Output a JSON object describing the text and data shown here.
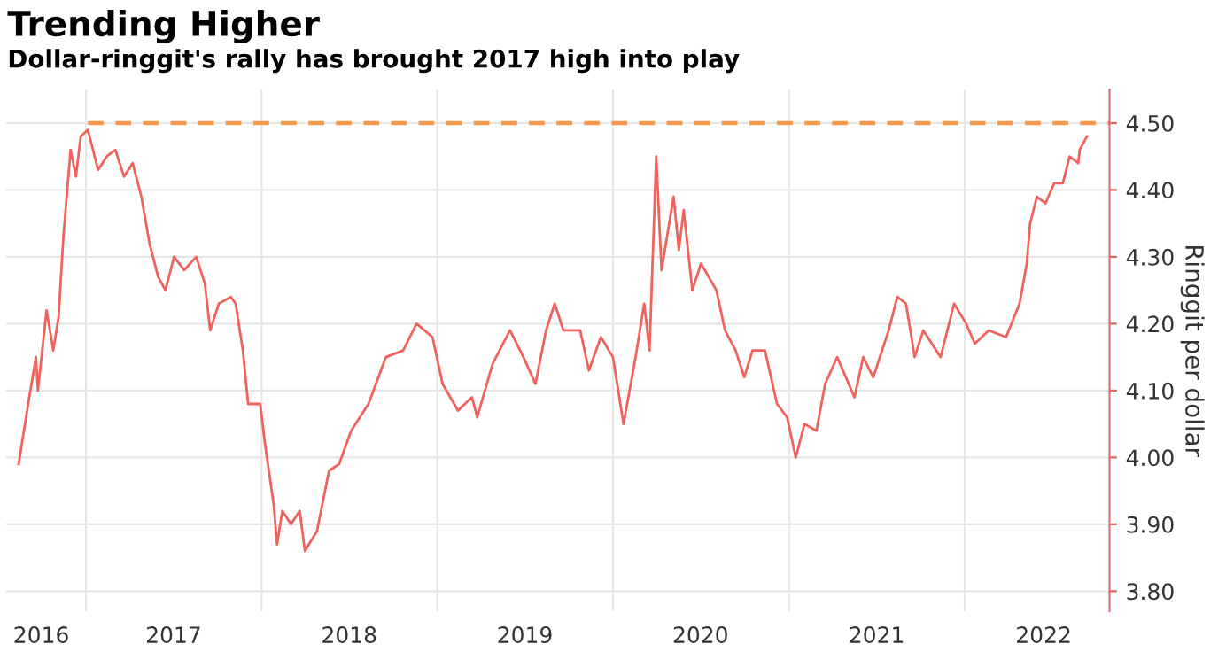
{
  "chart_data": {
    "type": "line",
    "title": "Trending Higher",
    "subtitle": "Dollar-ringgit's rally has brought 2017 high into play",
    "ylabel": "Ringgit per dollar",
    "xlim": [
      "2016-07-19",
      "2022-10-29"
    ],
    "ylim": [
      3.77,
      4.55
    ],
    "yticks": [
      {
        "value": 3.8,
        "label": "3.80"
      },
      {
        "value": 3.9,
        "label": "3.90"
      },
      {
        "value": 4.0,
        "label": "4.00"
      },
      {
        "value": 4.1,
        "label": "4.10"
      },
      {
        "value": 4.2,
        "label": "4.20"
      },
      {
        "value": 4.3,
        "label": "4.30"
      },
      {
        "value": 4.4,
        "label": "4.40"
      },
      {
        "value": 4.5,
        "label": "4.50"
      }
    ],
    "xticks": [
      {
        "value": "2017-01-01",
        "label": null
      },
      {
        "value": "2018-01-01",
        "label": null
      },
      {
        "value": "2019-01-01",
        "label": null
      },
      {
        "value": "2020-01-01",
        "label": null
      },
      {
        "value": "2021-01-01",
        "label": null
      },
      {
        "value": "2022-01-01",
        "label": null
      },
      {
        "value": "2016-09-30",
        "label": "2016"
      },
      {
        "value": "2017-07-02",
        "label": "2017"
      },
      {
        "value": "2018-07-02",
        "label": "2018"
      },
      {
        "value": "2019-07-02",
        "label": "2019"
      },
      {
        "value": "2020-07-01",
        "label": "2020"
      },
      {
        "value": "2021-07-02",
        "label": "2021"
      },
      {
        "value": "2022-06-14",
        "label": "2022"
      }
    ],
    "grid": true,
    "legend": false,
    "marker": "none",
    "series": [
      {
        "color": "#f0625c",
        "line_style": "solid",
        "x": [
          "2016-08-14",
          "2016-08-25",
          "2016-09-05",
          "2016-09-19",
          "2016-09-23",
          "2016-10-11",
          "2016-10-25",
          "2016-11-05",
          "2016-11-15",
          "2016-11-30",
          "2016-12-11",
          "2016-12-21",
          "2017-01-05",
          "2017-01-26",
          "2017-02-13",
          "2017-03-03",
          "2017-03-21",
          "2017-04-08",
          "2017-04-26",
          "2017-05-13",
          "2017-05-31",
          "2017-06-15",
          "2017-07-03",
          "2017-07-24",
          "2017-08-18",
          "2017-09-05",
          "2017-09-16",
          "2017-10-04",
          "2017-10-29",
          "2017-11-08",
          "2017-11-23",
          "2017-12-04",
          "2017-12-29",
          "2018-01-08",
          "2018-01-26",
          "2018-02-02",
          "2018-02-13",
          "2018-03-03",
          "2018-03-21",
          "2018-04-01",
          "2018-04-26",
          "2018-05-21",
          "2018-06-11",
          "2018-07-06",
          "2018-08-11",
          "2018-09-16",
          "2018-10-22",
          "2018-11-19",
          "2018-12-22",
          "2019-01-12",
          "2019-02-13",
          "2019-03-14",
          "2019-03-25",
          "2019-04-26",
          "2019-06-01",
          "2019-06-29",
          "2019-07-24",
          "2019-08-15",
          "2019-09-02",
          "2019-09-20",
          "2019-10-25",
          "2019-11-12",
          "2019-12-07",
          "2020-01-01",
          "2020-01-23",
          "2020-02-17",
          "2020-03-06",
          "2020-03-17",
          "2020-03-31",
          "2020-04-11",
          "2020-05-06",
          "2020-05-17",
          "2020-05-27",
          "2020-06-14",
          "2020-07-02",
          "2020-08-03",
          "2020-08-21",
          "2020-09-12",
          "2020-09-30",
          "2020-10-17",
          "2020-11-12",
          "2020-12-07",
          "2020-12-28",
          "2021-01-15",
          "2021-02-02",
          "2021-02-27",
          "2021-03-17",
          "2021-04-11",
          "2021-05-17",
          "2021-06-04",
          "2021-06-25",
          "2021-07-27",
          "2021-08-14",
          "2021-09-01",
          "2021-09-19",
          "2021-10-07",
          "2021-11-12",
          "2021-12-10",
          "2022-01-04",
          "2022-01-22",
          "2022-02-20",
          "2022-03-28",
          "2022-04-25",
          "2022-05-10",
          "2022-05-17",
          "2022-05-31",
          "2022-06-18",
          "2022-07-06",
          "2022-07-24",
          "2022-08-07",
          "2022-08-25",
          "2022-08-28",
          "2022-09-12"
        ],
        "values": [
          3.99,
          4.04,
          4.09,
          4.15,
          4.1,
          4.22,
          4.16,
          4.21,
          4.33,
          4.46,
          4.42,
          4.48,
          4.49,
          4.43,
          4.45,
          4.46,
          4.42,
          4.44,
          4.39,
          4.32,
          4.27,
          4.25,
          4.3,
          4.28,
          4.3,
          4.26,
          4.19,
          4.23,
          4.24,
          4.23,
          4.16,
          4.08,
          4.08,
          4.02,
          3.93,
          3.87,
          3.92,
          3.9,
          3.92,
          3.86,
          3.89,
          3.98,
          3.99,
          4.04,
          4.08,
          4.15,
          4.16,
          4.2,
          4.18,
          4.11,
          4.07,
          4.09,
          4.06,
          4.14,
          4.19,
          4.15,
          4.11,
          4.19,
          4.23,
          4.19,
          4.19,
          4.13,
          4.18,
          4.15,
          4.05,
          4.15,
          4.23,
          4.16,
          4.45,
          4.28,
          4.39,
          4.31,
          4.37,
          4.25,
          4.29,
          4.25,
          4.19,
          4.16,
          4.12,
          4.16,
          4.16,
          4.08,
          4.06,
          4.0,
          4.05,
          4.04,
          4.11,
          4.15,
          4.09,
          4.15,
          4.12,
          4.19,
          4.24,
          4.23,
          4.15,
          4.19,
          4.15,
          4.23,
          4.2,
          4.17,
          4.19,
          4.18,
          4.23,
          4.29,
          4.35,
          4.39,
          4.38,
          4.41,
          4.41,
          4.45,
          4.44,
          4.46,
          4.48
        ]
      },
      {
        "type": "line",
        "color": "#f39a4e",
        "line_style": "dashed",
        "x": [
          "2017-01-05",
          "2022-10-29"
        ],
        "values": [
          4.5,
          4.5
        ]
      }
    ]
  }
}
